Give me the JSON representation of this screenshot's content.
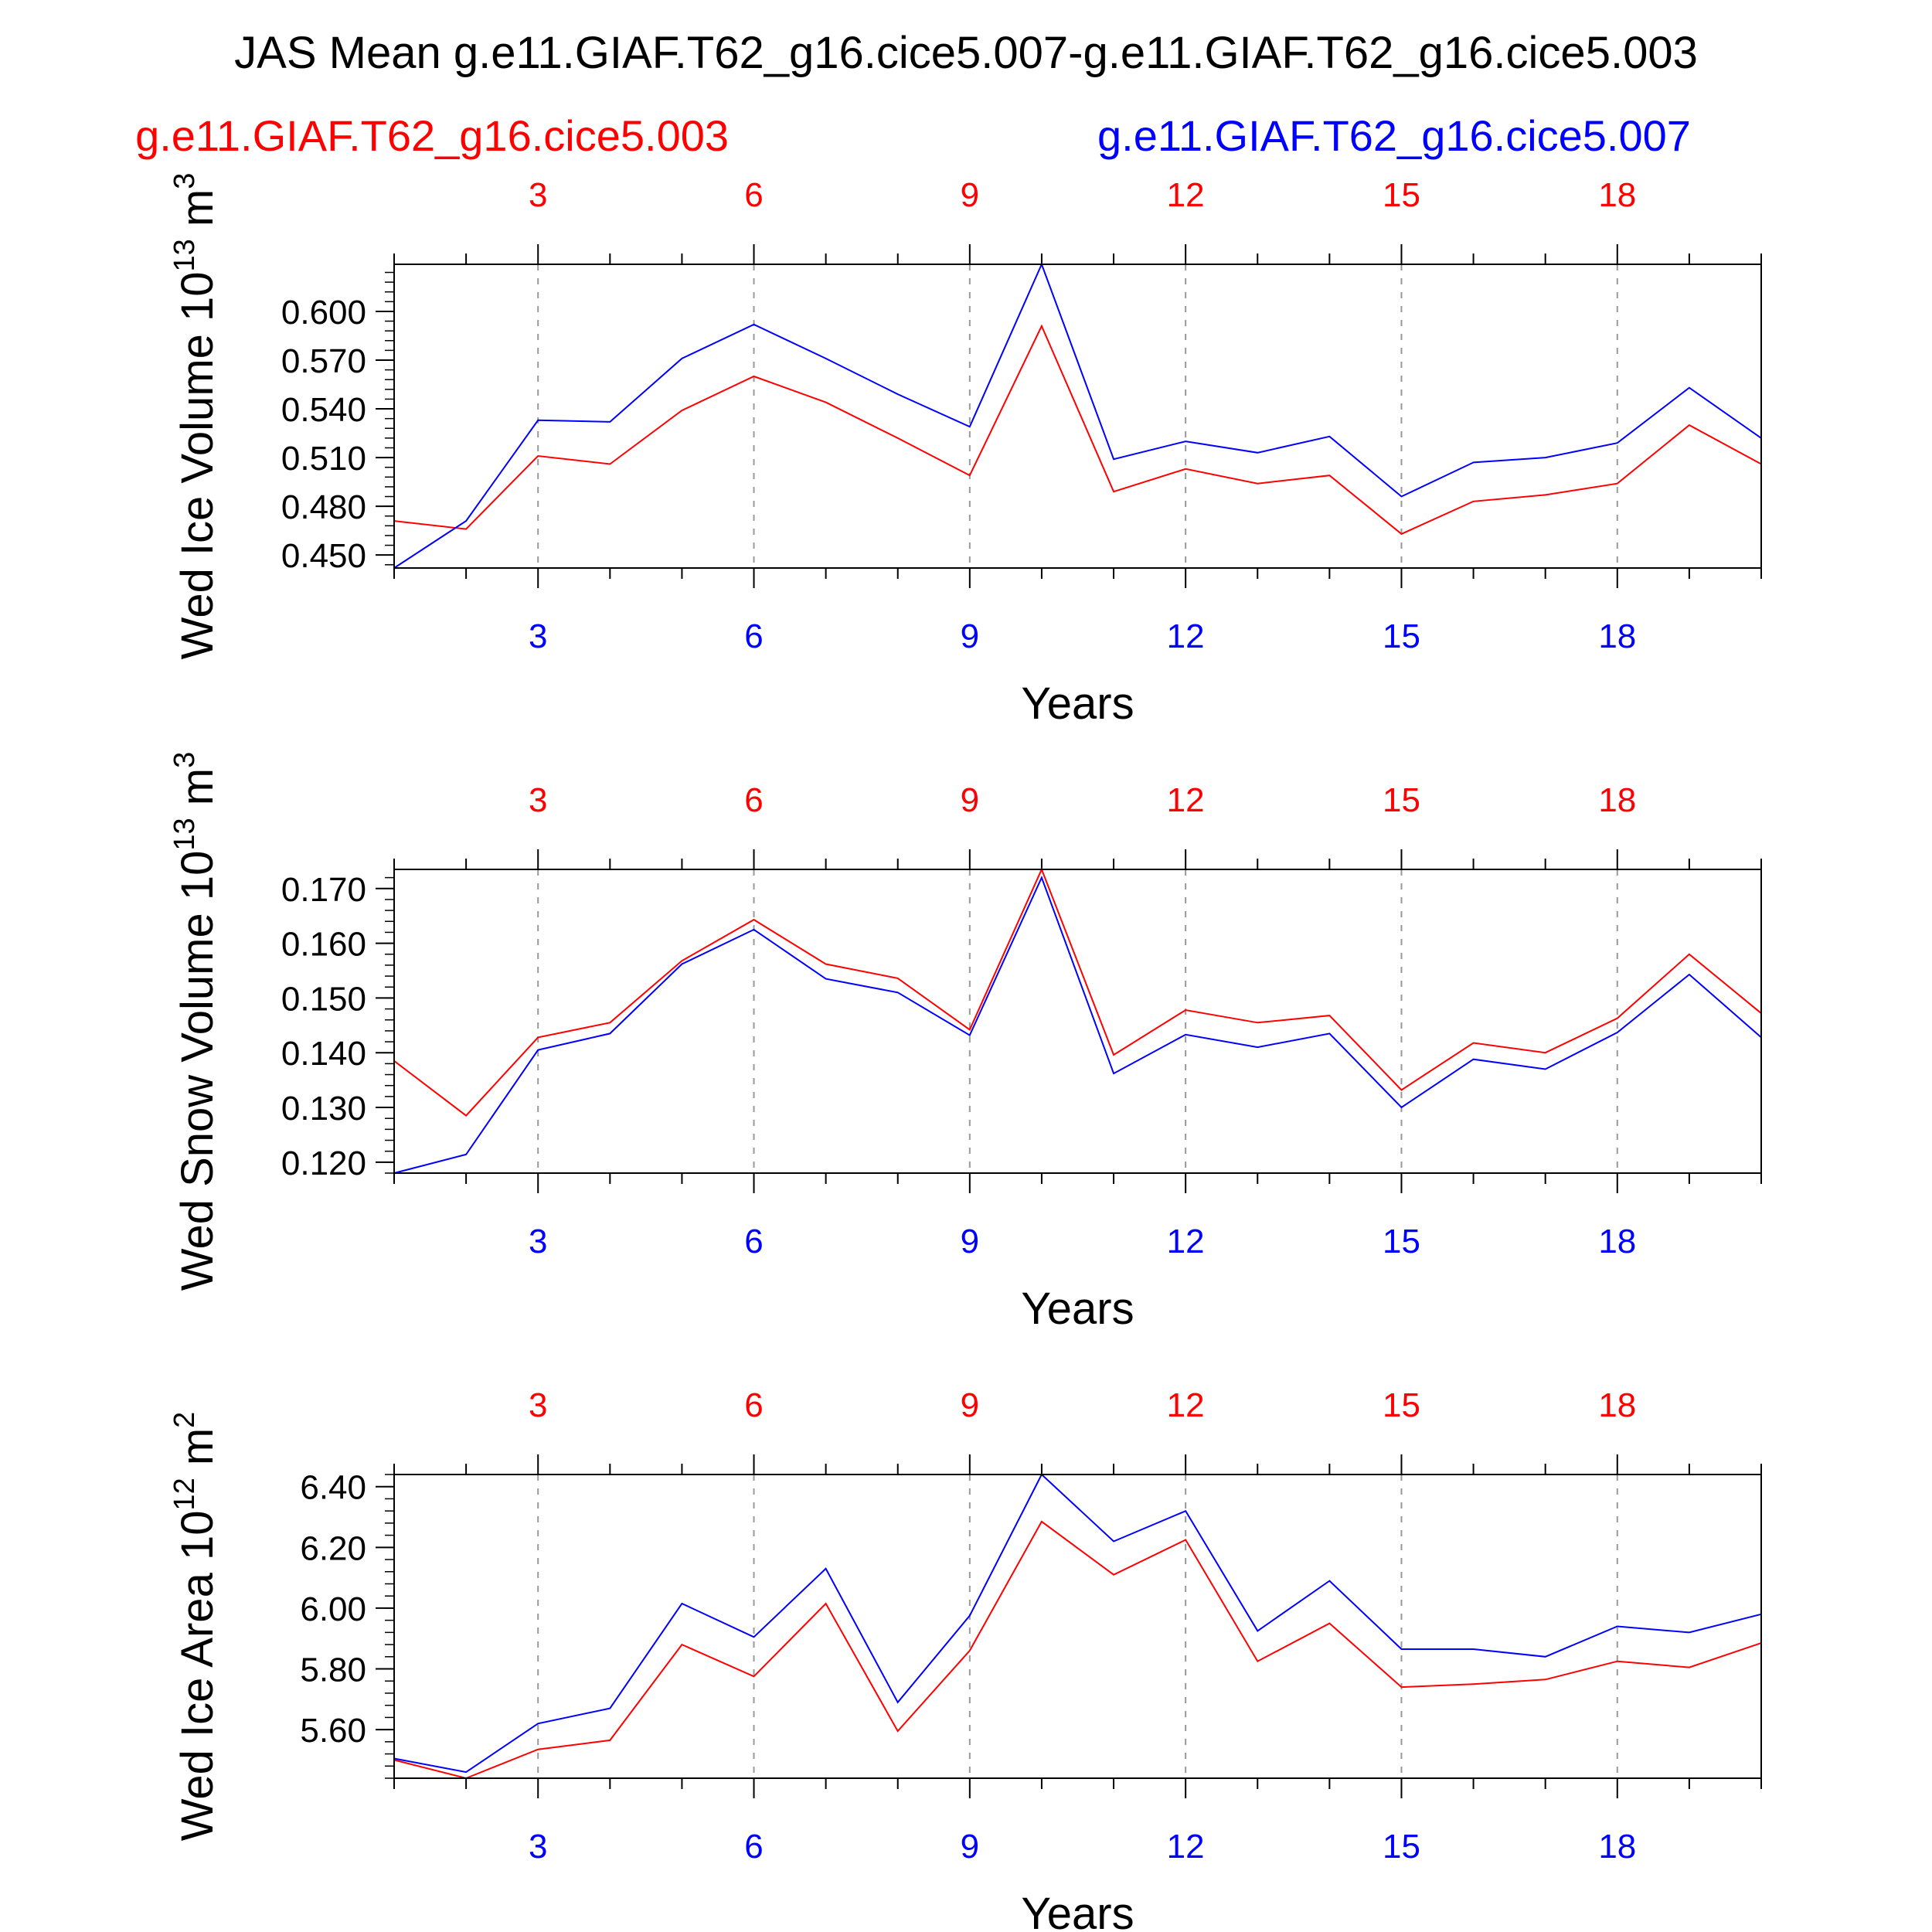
{
  "title": "JAS Mean g.e11.GIAF.T62_g16.cice5.007-g.e11.GIAF.T62_g16.cice5.003",
  "legend": {
    "red_label": "g.e11.GIAF.T62_g16.cice5.003",
    "blue_label": "g.e11.GIAF.T62_g16.cice5.007"
  },
  "colors": {
    "red": "#ff0000",
    "blue": "#0000ff",
    "axis": "#000000",
    "grid": "#999999"
  },
  "chart_data": [
    {
      "type": "line",
      "title": "",
      "ylabel_main": "Wed Ice Volume 10",
      "ylabel_exp": "13",
      "ylabel_unit": " m",
      "ylabel_unit_exp": "3",
      "xlabel": "Years",
      "x": [
        1,
        2,
        3,
        4,
        5,
        6,
        7,
        8,
        9,
        10,
        11,
        12,
        13,
        14,
        15,
        16,
        17,
        18,
        19,
        20
      ],
      "xlim": [
        1,
        20
      ],
      "ylim": [
        0.442,
        0.629
      ],
      "yticks": [
        0.45,
        0.48,
        0.51,
        0.54,
        0.57,
        0.6
      ],
      "yticklabels": [
        "0.450",
        "0.480",
        "0.510",
        "0.540",
        "0.570",
        "0.600"
      ],
      "yminor_step": 0.006,
      "xticks": [
        3,
        6,
        9,
        12,
        15,
        18
      ],
      "xticklabels": [
        "3",
        "6",
        "9",
        "12",
        "15",
        "18"
      ],
      "series": [
        {
          "name": "g.e11.GIAF.T62_g16.cice5.003",
          "color": "red",
          "values": [
            0.471,
            0.466,
            0.511,
            0.506,
            0.539,
            0.56,
            0.544,
            0.522,
            0.499,
            0.591,
            0.489,
            0.503,
            0.494,
            0.499,
            0.463,
            0.483,
            0.487,
            0.494,
            0.53,
            0.506
          ]
        },
        {
          "name": "g.e11.GIAF.T62_g16.cice5.007",
          "color": "blue",
          "values": [
            0.442,
            0.471,
            0.533,
            0.532,
            0.571,
            0.592,
            0.571,
            0.549,
            0.529,
            0.629,
            0.509,
            0.52,
            0.513,
            0.523,
            0.486,
            0.507,
            0.51,
            0.519,
            0.553,
            0.522
          ]
        }
      ]
    },
    {
      "type": "line",
      "title": "",
      "ylabel_main": "Wed Snow Volume 10",
      "ylabel_exp": "13",
      "ylabel_unit": " m",
      "ylabel_unit_exp": "3",
      "xlabel": "Years",
      "x": [
        1,
        2,
        3,
        4,
        5,
        6,
        7,
        8,
        9,
        10,
        11,
        12,
        13,
        14,
        15,
        16,
        17,
        18,
        19,
        20
      ],
      "xlim": [
        1,
        20
      ],
      "ylim": [
        0.118,
        0.1735
      ],
      "yticks": [
        0.12,
        0.13,
        0.14,
        0.15,
        0.16,
        0.17
      ],
      "yticklabels": [
        "0.120",
        "0.130",
        "0.140",
        "0.150",
        "0.160",
        "0.170"
      ],
      "yminor_step": 0.002,
      "xticks": [
        3,
        6,
        9,
        12,
        15,
        18
      ],
      "xticklabels": [
        "3",
        "6",
        "9",
        "12",
        "15",
        "18"
      ],
      "series": [
        {
          "name": "g.e11.GIAF.T62_g16.cice5.003",
          "color": "red",
          "values": [
            0.1385,
            0.1285,
            0.1428,
            0.1455,
            0.1568,
            0.1643,
            0.1562,
            0.1536,
            0.1442,
            0.1735,
            0.1396,
            0.1478,
            0.1455,
            0.1468,
            0.1332,
            0.1418,
            0.14,
            0.1463,
            0.158,
            0.1472
          ]
        },
        {
          "name": "g.e11.GIAF.T62_g16.cice5.007",
          "color": "blue",
          "values": [
            0.118,
            0.1214,
            0.1405,
            0.1435,
            0.1562,
            0.1625,
            0.1535,
            0.151,
            0.1432,
            0.172,
            0.1362,
            0.1433,
            0.141,
            0.1435,
            0.13,
            0.1388,
            0.137,
            0.1437,
            0.1543,
            0.1428
          ]
        }
      ]
    },
    {
      "type": "line",
      "title": "",
      "ylabel_main": "Wed Ice Area 10",
      "ylabel_exp": "12",
      "ylabel_unit": " m",
      "ylabel_unit_exp": "2",
      "xlabel": "Years",
      "x": [
        1,
        2,
        3,
        4,
        5,
        6,
        7,
        8,
        9,
        10,
        11,
        12,
        13,
        14,
        15,
        16,
        17,
        18,
        19,
        20
      ],
      "xlim": [
        1,
        20
      ],
      "ylim": [
        5.44,
        6.44
      ],
      "yticks": [
        5.6,
        5.8,
        6.0,
        6.2,
        6.4
      ],
      "yticklabels": [
        "5.60",
        "5.80",
        "6.00",
        "6.20",
        "6.40"
      ],
      "yminor_step": 0.04,
      "xticks": [
        3,
        6,
        9,
        12,
        15,
        18
      ],
      "xticklabels": [
        "3",
        "6",
        "9",
        "12",
        "15",
        "18"
      ],
      "series": [
        {
          "name": "g.e11.GIAF.T62_g16.cice5.003",
          "color": "red",
          "values": [
            5.5,
            5.44,
            5.535,
            5.565,
            5.88,
            5.775,
            6.015,
            5.595,
            5.86,
            6.285,
            6.11,
            6.225,
            5.825,
            5.95,
            5.74,
            5.75,
            5.765,
            5.825,
            5.805,
            5.885
          ]
        },
        {
          "name": "g.e11.GIAF.T62_g16.cice5.007",
          "color": "blue",
          "values": [
            5.505,
            5.46,
            5.62,
            5.67,
            6.015,
            5.905,
            6.13,
            5.69,
            5.975,
            6.44,
            6.22,
            6.32,
            5.925,
            6.09,
            5.865,
            5.865,
            5.84,
            5.94,
            5.92,
            5.98
          ]
        }
      ]
    }
  ]
}
